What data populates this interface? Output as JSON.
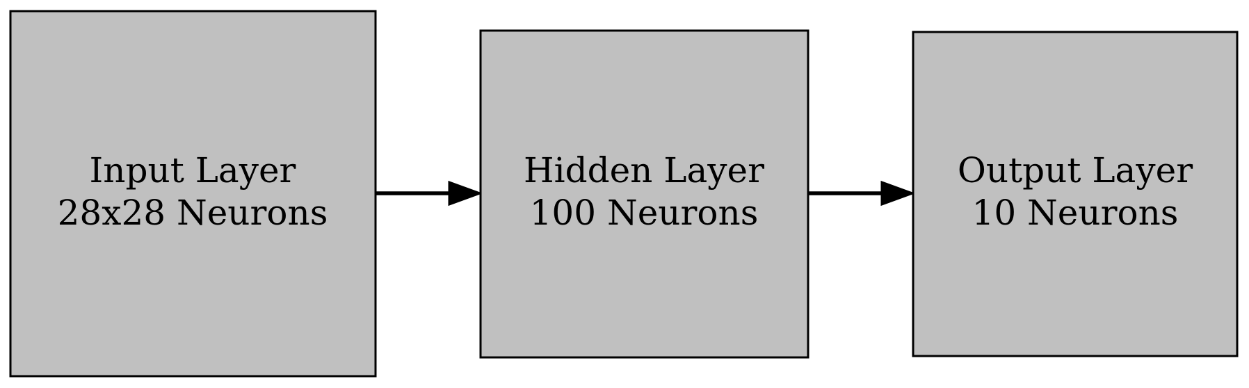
{
  "diagram": {
    "nodes": [
      {
        "id": "input",
        "line1": "Input Layer",
        "line2": "28x28 Neurons"
      },
      {
        "id": "hidden",
        "line1": "Hidden Layer",
        "line2": "100 Neurons"
      },
      {
        "id": "output",
        "line1": "Output Layer",
        "line2": "10 Neurons"
      }
    ],
    "edges": [
      {
        "from": "input",
        "to": "hidden"
      },
      {
        "from": "hidden",
        "to": "output"
      }
    ],
    "colors": {
      "node_fill": "#c0c0c0",
      "node_stroke": "#000000",
      "edge": "#000000",
      "text": "#000000"
    }
  }
}
